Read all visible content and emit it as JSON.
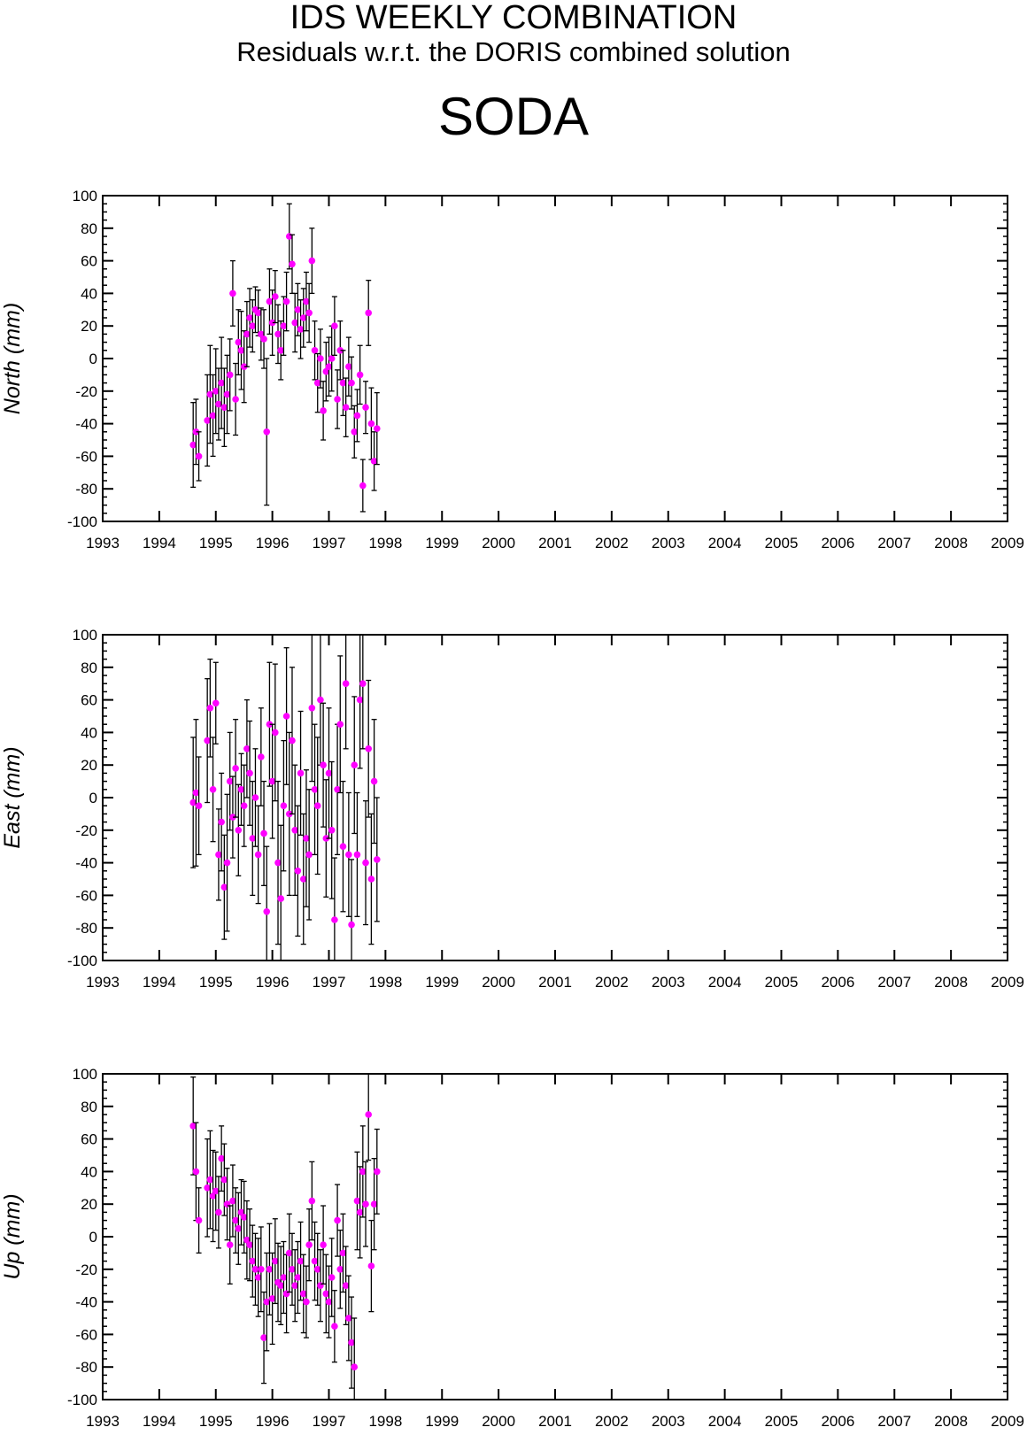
{
  "header": {
    "title": "IDS WEEKLY COMBINATION",
    "subtitle": "Residuals w.r.t. the DORIS combined solution",
    "station": "SODA"
  },
  "colors": {
    "marker": "#ff00ff",
    "axis": "#000000",
    "errorbar": "#000000"
  },
  "chart_data": [
    {
      "type": "scatter",
      "ylabel": "North (mm)",
      "xlim": [
        1993,
        2009
      ],
      "ylim": [
        -100,
        100
      ],
      "xticks": [
        "1993",
        "1994",
        "1995",
        "1996",
        "1997",
        "1998",
        "1999",
        "2000",
        "2001",
        "2002",
        "2003",
        "2004",
        "2005",
        "2006",
        "2007",
        "2008",
        "2009"
      ],
      "yticks": [
        "100",
        "80",
        "60",
        "40",
        "20",
        "0",
        "-20",
        "-40",
        "-60",
        "-80",
        "-100"
      ],
      "grid": false,
      "error_bars": true,
      "series": [
        {
          "x": [
            1994.6,
            1994.65,
            1994.7,
            1994.85,
            1994.9,
            1994.95,
            1995.0,
            1995.05,
            1995.1,
            1995.15,
            1995.2,
            1995.25,
            1995.3,
            1995.35,
            1995.4,
            1995.45,
            1995.5,
            1995.55,
            1995.6,
            1995.65,
            1995.7,
            1995.75,
            1995.8,
            1995.85,
            1995.9,
            1995.95,
            1996.0,
            1996.05,
            1996.1,
            1996.15,
            1996.2,
            1996.25,
            1996.3,
            1996.35,
            1996.4,
            1996.45,
            1996.5,
            1996.55,
            1996.6,
            1996.65,
            1996.7,
            1996.75,
            1996.8,
            1996.85,
            1996.9,
            1996.95,
            1997.0,
            1997.05,
            1997.1,
            1997.15,
            1997.2,
            1997.25,
            1997.3,
            1997.35,
            1997.4,
            1997.45,
            1997.5,
            1997.55,
            1997.6,
            1997.65,
            1997.7,
            1997.75,
            1997.8,
            1997.85
          ],
          "y": [
            -53,
            -45,
            -60,
            -38,
            -22,
            -35,
            -20,
            -28,
            -15,
            -30,
            -22,
            -10,
            40,
            -25,
            10,
            5,
            -5,
            15,
            25,
            20,
            30,
            28,
            15,
            12,
            -45,
            35,
            22,
            38,
            15,
            5,
            20,
            35,
            75,
            58,
            22,
            30,
            18,
            25,
            35,
            28,
            60,
            5,
            -15,
            0,
            -32,
            -8,
            -5,
            0,
            20,
            -25,
            5,
            -15,
            -30,
            -5,
            -15,
            -45,
            -35,
            -10,
            -78,
            -30,
            28,
            -40,
            -63,
            -43
          ],
          "err": [
            26,
            20,
            15,
            28,
            30,
            25,
            26,
            22,
            28,
            24,
            24,
            22,
            20,
            22,
            20,
            24,
            22,
            20,
            18,
            16,
            14,
            14,
            16,
            18,
            45,
            20,
            20,
            16,
            18,
            18,
            18,
            18,
            20,
            18,
            18,
            16,
            18,
            18,
            18,
            18,
            20,
            18,
            18,
            18,
            18,
            18,
            18,
            20,
            18,
            18,
            18,
            20,
            18,
            18,
            16,
            16,
            16,
            18,
            16,
            16,
            20,
            22,
            18,
            22
          ]
        }
      ]
    },
    {
      "type": "scatter",
      "ylabel": "East (mm)",
      "xlim": [
        1993,
        2009
      ],
      "ylim": [
        -100,
        100
      ],
      "xticks": [
        "1993",
        "1994",
        "1995",
        "1996",
        "1997",
        "1998",
        "1999",
        "2000",
        "2001",
        "2002",
        "2003",
        "2004",
        "2005",
        "2006",
        "2007",
        "2008",
        "2009"
      ],
      "yticks": [
        "100",
        "80",
        "60",
        "40",
        "20",
        "0",
        "-20",
        "-40",
        "-60",
        "-80",
        "-100"
      ],
      "grid": false,
      "error_bars": true,
      "series": [
        {
          "x": [
            1994.6,
            1994.65,
            1994.7,
            1994.85,
            1994.9,
            1994.95,
            1995.0,
            1995.05,
            1995.1,
            1995.15,
            1995.2,
            1995.25,
            1995.3,
            1995.35,
            1995.4,
            1995.45,
            1995.5,
            1995.55,
            1995.6,
            1995.65,
            1995.7,
            1995.75,
            1995.8,
            1995.85,
            1995.9,
            1995.95,
            1996.0,
            1996.05,
            1996.1,
            1996.15,
            1996.2,
            1996.25,
            1996.3,
            1996.35,
            1996.4,
            1996.45,
            1996.5,
            1996.55,
            1996.6,
            1996.65,
            1996.7,
            1996.75,
            1996.8,
            1996.85,
            1996.9,
            1996.95,
            1997.0,
            1997.05,
            1997.1,
            1997.15,
            1997.2,
            1997.25,
            1997.3,
            1997.35,
            1997.4,
            1997.45,
            1997.5,
            1997.55,
            1997.6,
            1997.65,
            1997.7,
            1997.75,
            1997.8,
            1997.85
          ],
          "y": [
            -3,
            3,
            -5,
            35,
            55,
            5,
            58,
            -35,
            -15,
            -55,
            -40,
            10,
            -12,
            18,
            -20,
            5,
            -5,
            30,
            15,
            -25,
            0,
            -35,
            25,
            -22,
            -70,
            45,
            10,
            40,
            -40,
            -62,
            -5,
            50,
            -10,
            35,
            -20,
            -45,
            15,
            -50,
            -25,
            -35,
            55,
            5,
            -5,
            60,
            20,
            -25,
            15,
            -20,
            -75,
            5,
            45,
            -30,
            70,
            -35,
            -78,
            20,
            -35,
            60,
            70,
            -40,
            30,
            -50,
            10,
            -38
          ],
          "err": [
            40,
            45,
            30,
            38,
            30,
            32,
            25,
            28,
            30,
            32,
            42,
            30,
            25,
            30,
            28,
            22,
            25,
            30,
            32,
            35,
            30,
            30,
            30,
            32,
            40,
            38,
            35,
            42,
            50,
            45,
            40,
            42,
            50,
            45,
            40,
            40,
            38,
            40,
            42,
            40,
            45,
            40,
            42,
            40,
            38,
            36,
            40,
            42,
            38,
            40,
            42,
            40,
            40,
            38,
            40,
            42,
            38,
            42,
            40,
            38,
            42,
            40,
            38,
            38
          ]
        }
      ]
    },
    {
      "type": "scatter",
      "ylabel": "Up (mm)",
      "xlim": [
        1993,
        2009
      ],
      "ylim": [
        -100,
        100
      ],
      "xticks": [
        "1993",
        "1994",
        "1995",
        "1996",
        "1997",
        "1998",
        "1999",
        "2000",
        "2001",
        "2002",
        "2003",
        "2004",
        "2005",
        "2006",
        "2007",
        "2008",
        "2009"
      ],
      "yticks": [
        "100",
        "80",
        "60",
        "40",
        "20",
        "0",
        "-20",
        "-40",
        "-60",
        "-80",
        "-100"
      ],
      "grid": false,
      "error_bars": true,
      "series": [
        {
          "x": [
            1994.6,
            1994.65,
            1994.7,
            1994.85,
            1994.9,
            1994.95,
            1995.0,
            1995.05,
            1995.1,
            1995.15,
            1995.2,
            1995.25,
            1995.3,
            1995.35,
            1995.4,
            1995.45,
            1995.5,
            1995.55,
            1995.6,
            1995.65,
            1995.7,
            1995.75,
            1995.8,
            1995.85,
            1995.9,
            1995.95,
            1996.0,
            1996.05,
            1996.1,
            1996.15,
            1996.2,
            1996.25,
            1996.3,
            1996.35,
            1996.4,
            1996.45,
            1996.5,
            1996.55,
            1996.6,
            1996.65,
            1996.7,
            1996.75,
            1996.8,
            1996.85,
            1996.9,
            1996.95,
            1997.0,
            1997.05,
            1997.1,
            1997.15,
            1997.2,
            1997.25,
            1997.3,
            1997.35,
            1997.4,
            1997.45,
            1997.5,
            1997.55,
            1997.6,
            1997.65,
            1997.7,
            1997.75,
            1997.8,
            1997.85
          ],
          "y": [
            68,
            40,
            10,
            30,
            35,
            25,
            28,
            15,
            48,
            35,
            20,
            -5,
            22,
            10,
            5,
            15,
            12,
            -2,
            -5,
            -15,
            -20,
            -25,
            -20,
            -62,
            -40,
            -20,
            -38,
            -15,
            -28,
            -30,
            -25,
            -35,
            -10,
            -20,
            -30,
            -25,
            -15,
            -35,
            -40,
            -5,
            22,
            -15,
            -20,
            -30,
            -5,
            -35,
            -40,
            -25,
            -55,
            10,
            -20,
            -10,
            -30,
            -50,
            -65,
            -80,
            22,
            15,
            40,
            20,
            75,
            -18,
            20,
            40
          ],
          "err": [
            30,
            30,
            20,
            30,
            30,
            28,
            24,
            22,
            20,
            22,
            22,
            24,
            22,
            20,
            22,
            20,
            22,
            24,
            22,
            22,
            22,
            24,
            26,
            28,
            30,
            28,
            28,
            26,
            24,
            24,
            22,
            24,
            24,
            22,
            22,
            22,
            24,
            24,
            22,
            22,
            24,
            24,
            22,
            22,
            24,
            24,
            22,
            24,
            22,
            22,
            24,
            24,
            24,
            26,
            28,
            30,
            30,
            28,
            28,
            26,
            28,
            28,
            28,
            26
          ]
        }
      ]
    }
  ]
}
